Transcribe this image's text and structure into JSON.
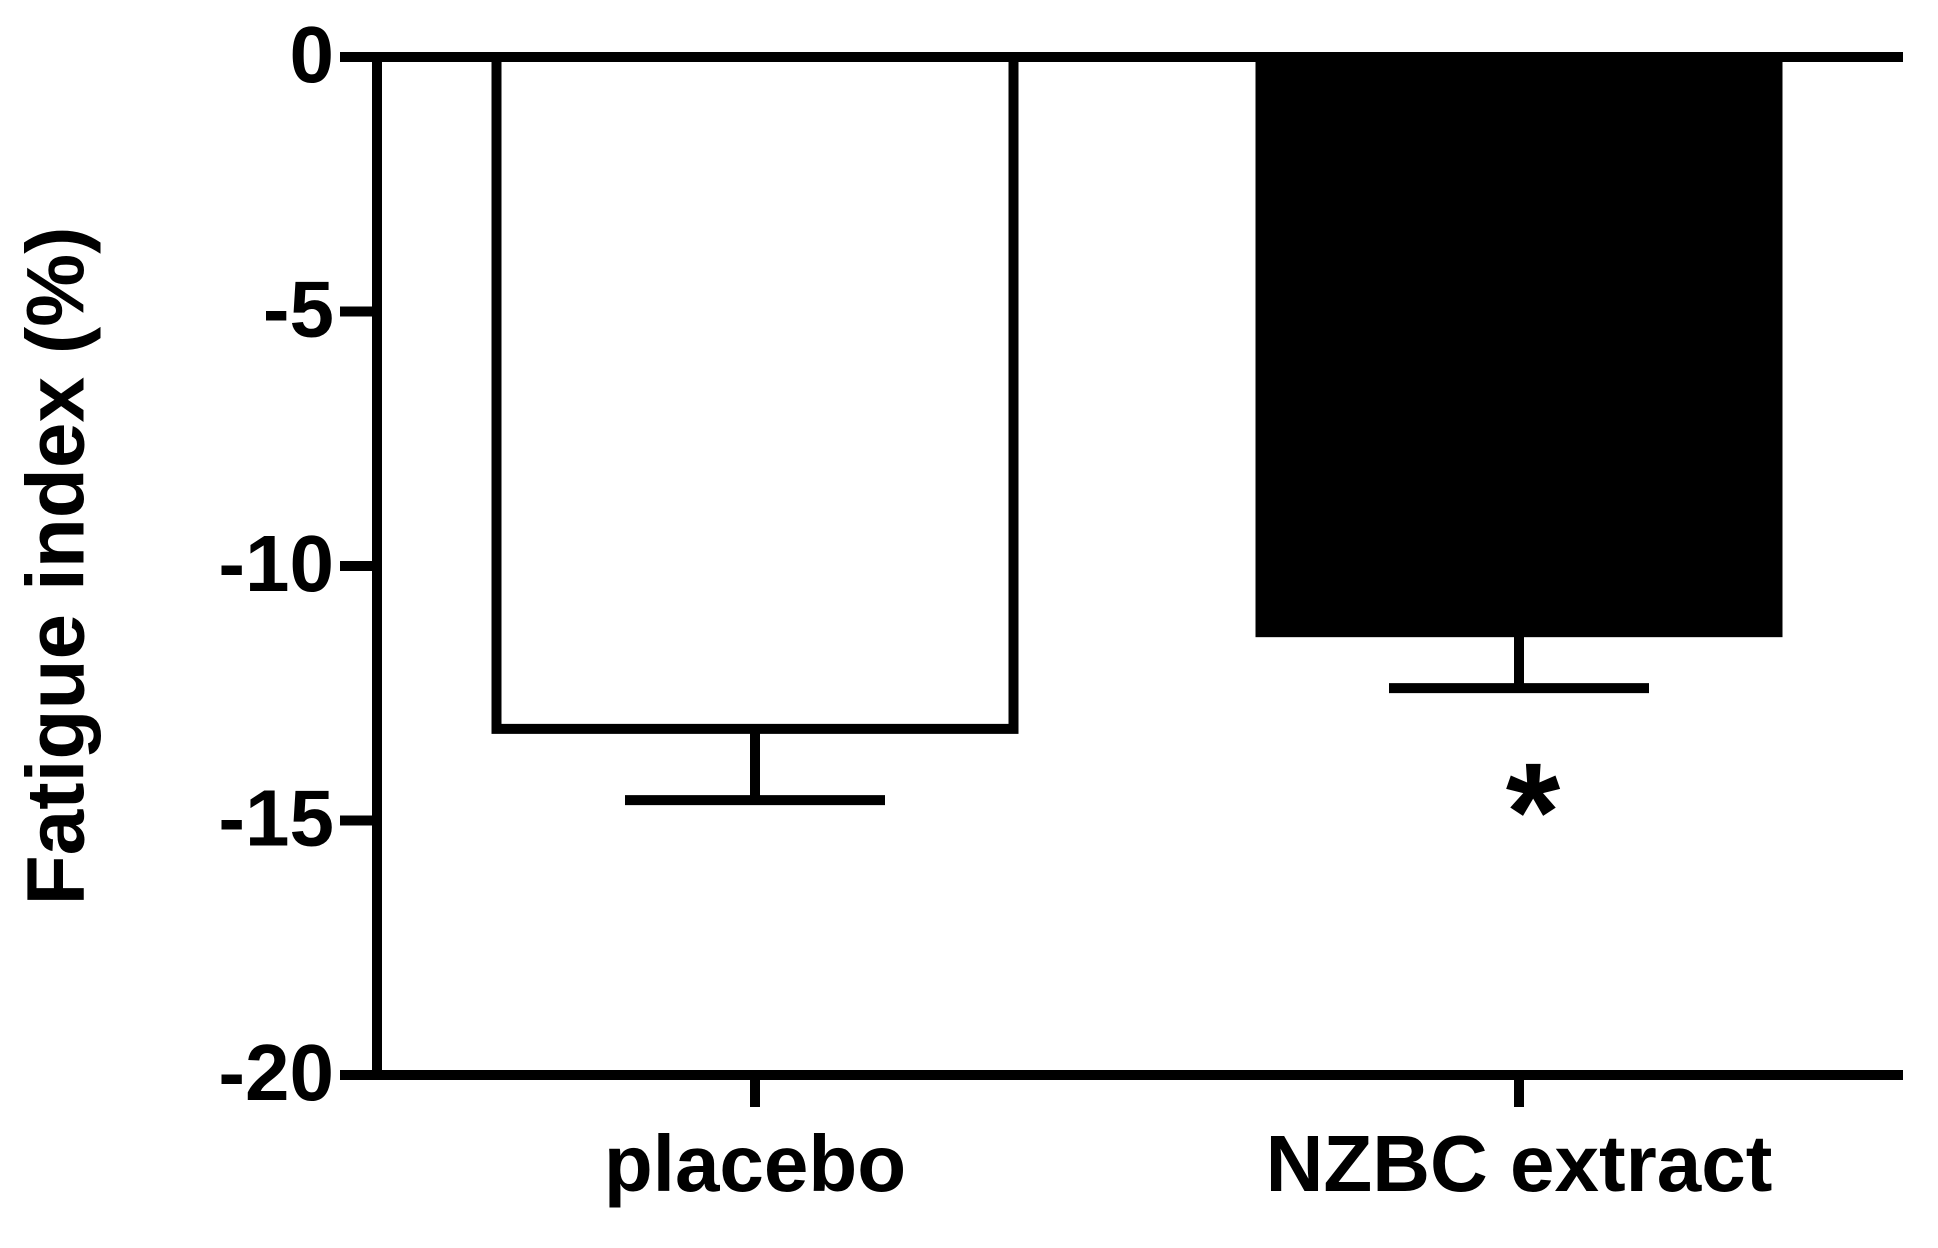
{
  "chart_data": {
    "type": "bar",
    "y_label": "Fatigue index (%)",
    "categories": [
      "placebo",
      "NZBC extract"
    ],
    "values": [
      -13.2,
      -11.3
    ],
    "errors": [
      1.4,
      1.1
    ],
    "colors": [
      "#ffffff",
      "#000000"
    ],
    "ylim": [
      -20,
      0
    ],
    "yticks": [
      0,
      -5,
      -10,
      -15,
      -20
    ],
    "grid": false,
    "annotations": [
      {
        "text": "*",
        "category": 1
      }
    ]
  }
}
